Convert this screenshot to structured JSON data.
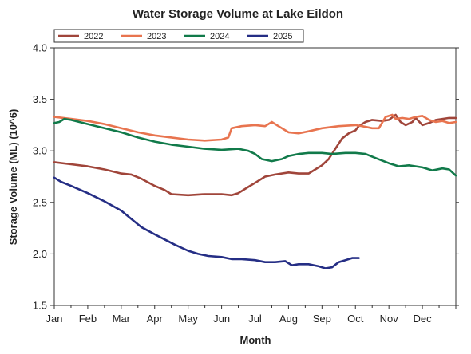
{
  "chart_data": {
    "type": "line",
    "title": "Water Storage Volume at Lake Eildon",
    "xlabel": "Month",
    "ylabel": "Storage Volume (ML) (10^6)",
    "xlim": [
      0,
      12
    ],
    "ylim": [
      1.5,
      4.0
    ],
    "yticks": [
      1.5,
      2.0,
      2.5,
      3.0,
      3.5,
      4.0
    ],
    "ytick_labels": [
      "1.5",
      "2.0",
      "2.5",
      "3.0",
      "3.5",
      "4.0"
    ],
    "categories": [
      "Jan",
      "Feb",
      "Mar",
      "Apr",
      "May",
      "Jun",
      "Jul",
      "Aug",
      "Sep",
      "Oct",
      "Nov",
      "Dec"
    ],
    "grid": false,
    "legend_position": "top-left",
    "series": [
      {
        "name": "2022",
        "color": "#a0453a",
        "points": [
          [
            0,
            2.89
          ],
          [
            0.5,
            2.87
          ],
          [
            1,
            2.85
          ],
          [
            1.5,
            2.82
          ],
          [
            2,
            2.78
          ],
          [
            2.3,
            2.77
          ],
          [
            2.6,
            2.73
          ],
          [
            3,
            2.66
          ],
          [
            3.3,
            2.62
          ],
          [
            3.5,
            2.58
          ],
          [
            4,
            2.57
          ],
          [
            4.5,
            2.58
          ],
          [
            5,
            2.58
          ],
          [
            5.3,
            2.57
          ],
          [
            5.5,
            2.59
          ],
          [
            5.8,
            2.65
          ],
          [
            6,
            2.69
          ],
          [
            6.3,
            2.75
          ],
          [
            6.6,
            2.77
          ],
          [
            7,
            2.79
          ],
          [
            7.3,
            2.78
          ],
          [
            7.6,
            2.78
          ],
          [
            7.8,
            2.82
          ],
          [
            8,
            2.86
          ],
          [
            8.2,
            2.92
          ],
          [
            8.4,
            3.02
          ],
          [
            8.6,
            3.12
          ],
          [
            8.8,
            3.17
          ],
          [
            9,
            3.2
          ],
          [
            9.1,
            3.24
          ],
          [
            9.3,
            3.28
          ],
          [
            9.5,
            3.3
          ],
          [
            9.8,
            3.29
          ],
          [
            10,
            3.3
          ],
          [
            10.2,
            3.35
          ],
          [
            10.35,
            3.28
          ],
          [
            10.5,
            3.25
          ],
          [
            10.7,
            3.28
          ],
          [
            10.8,
            3.32
          ],
          [
            11,
            3.25
          ],
          [
            11.2,
            3.27
          ],
          [
            11.4,
            3.3
          ],
          [
            11.6,
            3.31
          ],
          [
            11.8,
            3.32
          ],
          [
            12,
            3.32
          ]
        ]
      },
      {
        "name": "2023",
        "color": "#e8744f",
        "points": [
          [
            0,
            3.33
          ],
          [
            0.5,
            3.31
          ],
          [
            1,
            3.29
          ],
          [
            1.5,
            3.26
          ],
          [
            2,
            3.22
          ],
          [
            2.5,
            3.18
          ],
          [
            3,
            3.15
          ],
          [
            3.5,
            3.13
          ],
          [
            4,
            3.11
          ],
          [
            4.5,
            3.1
          ],
          [
            5,
            3.11
          ],
          [
            5.2,
            3.13
          ],
          [
            5.3,
            3.22
          ],
          [
            5.6,
            3.24
          ],
          [
            6,
            3.25
          ],
          [
            6.3,
            3.24
          ],
          [
            6.5,
            3.28
          ],
          [
            6.7,
            3.24
          ],
          [
            7,
            3.18
          ],
          [
            7.3,
            3.17
          ],
          [
            7.6,
            3.19
          ],
          [
            8,
            3.22
          ],
          [
            8.5,
            3.24
          ],
          [
            9,
            3.25
          ],
          [
            9.2,
            3.24
          ],
          [
            9.5,
            3.22
          ],
          [
            9.7,
            3.22
          ],
          [
            9.9,
            3.33
          ],
          [
            10.1,
            3.35
          ],
          [
            10.2,
            3.31
          ],
          [
            10.4,
            3.32
          ],
          [
            10.6,
            3.31
          ],
          [
            10.8,
            3.33
          ],
          [
            11,
            3.34
          ],
          [
            11.2,
            3.3
          ],
          [
            11.4,
            3.28
          ],
          [
            11.6,
            3.29
          ],
          [
            11.8,
            3.27
          ],
          [
            12,
            3.28
          ]
        ]
      },
      {
        "name": "2024",
        "color": "#117a4a",
        "points": [
          [
            0,
            3.27
          ],
          [
            0.15,
            3.28
          ],
          [
            0.3,
            3.31
          ],
          [
            0.5,
            3.3
          ],
          [
            1,
            3.26
          ],
          [
            1.5,
            3.22
          ],
          [
            2,
            3.18
          ],
          [
            2.5,
            3.13
          ],
          [
            3,
            3.09
          ],
          [
            3.5,
            3.06
          ],
          [
            4,
            3.04
          ],
          [
            4.5,
            3.02
          ],
          [
            5,
            3.01
          ],
          [
            5.5,
            3.02
          ],
          [
            5.8,
            3.0
          ],
          [
            6,
            2.97
          ],
          [
            6.2,
            2.92
          ],
          [
            6.5,
            2.9
          ],
          [
            6.8,
            2.92
          ],
          [
            7,
            2.95
          ],
          [
            7.3,
            2.97
          ],
          [
            7.6,
            2.98
          ],
          [
            8,
            2.98
          ],
          [
            8.3,
            2.97
          ],
          [
            8.7,
            2.98
          ],
          [
            9,
            2.98
          ],
          [
            9.3,
            2.97
          ],
          [
            9.6,
            2.93
          ],
          [
            10,
            2.88
          ],
          [
            10.3,
            2.85
          ],
          [
            10.6,
            2.86
          ],
          [
            11,
            2.84
          ],
          [
            11.3,
            2.81
          ],
          [
            11.6,
            2.83
          ],
          [
            11.8,
            2.82
          ],
          [
            12,
            2.76
          ]
        ]
      },
      {
        "name": "2025",
        "color": "#252e85",
        "points": [
          [
            0,
            2.74
          ],
          [
            0.2,
            2.7
          ],
          [
            0.5,
            2.66
          ],
          [
            1,
            2.59
          ],
          [
            1.5,
            2.51
          ],
          [
            2,
            2.42
          ],
          [
            2.3,
            2.34
          ],
          [
            2.6,
            2.26
          ],
          [
            3,
            2.19
          ],
          [
            3.3,
            2.14
          ],
          [
            3.6,
            2.09
          ],
          [
            4,
            2.03
          ],
          [
            4.3,
            2.0
          ],
          [
            4.6,
            1.98
          ],
          [
            5,
            1.97
          ],
          [
            5.3,
            1.95
          ],
          [
            5.6,
            1.95
          ],
          [
            6,
            1.94
          ],
          [
            6.3,
            1.92
          ],
          [
            6.6,
            1.92
          ],
          [
            6.9,
            1.93
          ],
          [
            7.1,
            1.89
          ],
          [
            7.3,
            1.9
          ],
          [
            7.6,
            1.9
          ],
          [
            7.9,
            1.88
          ],
          [
            8.1,
            1.86
          ],
          [
            8.3,
            1.87
          ],
          [
            8.5,
            1.92
          ],
          [
            8.7,
            1.94
          ],
          [
            8.9,
            1.96
          ],
          [
            9.1,
            1.96
          ]
        ]
      }
    ]
  }
}
